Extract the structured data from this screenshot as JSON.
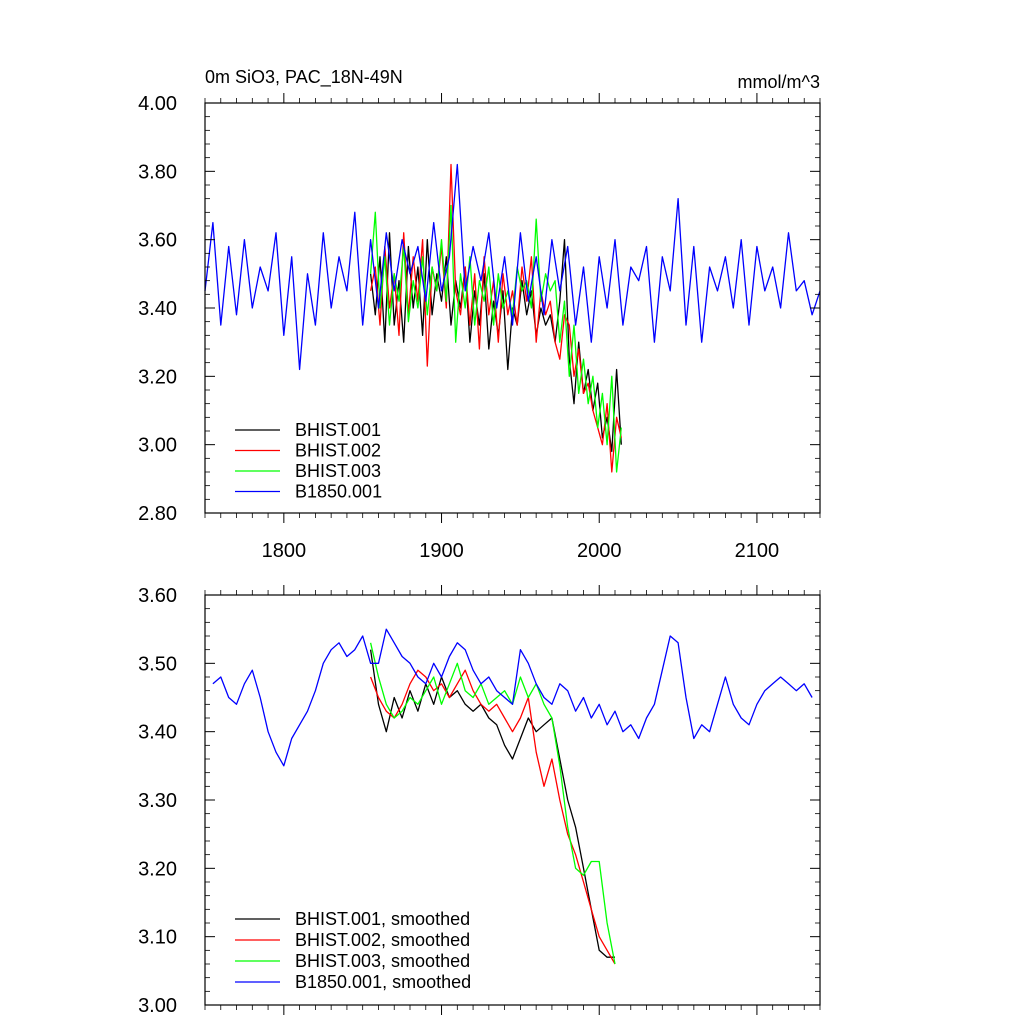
{
  "chart_data": [
    {
      "type": "line",
      "title": "0m SiO3, PAC_18N-49N",
      "units": "mmol/m^3",
      "xlim": [
        1750,
        2140
      ],
      "ylim": [
        2.8,
        4.0
      ],
      "xticks": [
        1800,
        1900,
        2000,
        2100
      ],
      "xtick_labels": [
        "1800",
        "1900",
        "2000",
        "2100"
      ],
      "yticks": [
        2.8,
        3.0,
        3.2,
        3.4,
        3.6,
        3.8,
        4.0
      ],
      "ytick_labels": [
        "2.80",
        "3.00",
        "3.20",
        "3.40",
        "3.60",
        "3.80",
        "4.00"
      ],
      "grid": false,
      "legend_position": "bottom-left",
      "series": [
        {
          "name": "BHIST.001",
          "color": "#000000",
          "x": [
            1855,
            1858,
            1861,
            1864,
            1867,
            1870,
            1873,
            1876,
            1879,
            1882,
            1885,
            1888,
            1891,
            1894,
            1897,
            1900,
            1903,
            1906,
            1909,
            1912,
            1915,
            1918,
            1921,
            1924,
            1927,
            1930,
            1933,
            1936,
            1939,
            1942,
            1945,
            1948,
            1951,
            1954,
            1957,
            1960,
            1963,
            1966,
            1969,
            1972,
            1975,
            1978,
            1981,
            1984,
            1987,
            1990,
            1993,
            1996,
            1999,
            2002,
            2005,
            2008,
            2011,
            2014
          ],
          "values": [
            3.5,
            3.38,
            3.55,
            3.3,
            3.62,
            3.35,
            3.48,
            3.3,
            3.58,
            3.4,
            3.52,
            3.32,
            3.6,
            3.38,
            3.5,
            3.42,
            3.55,
            3.35,
            3.48,
            3.4,
            3.52,
            3.3,
            3.45,
            3.35,
            3.5,
            3.28,
            3.42,
            3.32,
            3.45,
            3.22,
            3.4,
            3.35,
            3.48,
            3.38,
            3.45,
            3.32,
            3.4,
            3.35,
            3.38,
            3.3,
            3.42,
            3.6,
            3.25,
            3.12,
            3.3,
            3.15,
            3.22,
            3.1,
            3.18,
            3.02,
            3.08,
            2.98,
            3.22,
            3.0
          ]
        },
        {
          "name": "BHIST.002",
          "color": "#ff0000",
          "x": [
            1855,
            1858,
            1861,
            1864,
            1867,
            1870,
            1873,
            1876,
            1879,
            1882,
            1885,
            1888,
            1891,
            1894,
            1897,
            1900,
            1903,
            1906,
            1909,
            1912,
            1915,
            1918,
            1921,
            1924,
            1927,
            1930,
            1933,
            1936,
            1939,
            1942,
            1945,
            1948,
            1951,
            1954,
            1957,
            1960,
            1963,
            1966,
            1969,
            1972,
            1975,
            1978,
            1981,
            1984,
            1987,
            1990,
            1993,
            1996,
            1999,
            2002,
            2005,
            2008,
            2011,
            2014
          ],
          "values": [
            3.45,
            3.52,
            3.35,
            3.58,
            3.4,
            3.5,
            3.32,
            3.62,
            3.38,
            3.55,
            3.42,
            3.6,
            3.23,
            3.52,
            3.45,
            3.58,
            3.4,
            3.82,
            3.45,
            3.38,
            3.52,
            3.35,
            3.5,
            3.28,
            3.55,
            3.38,
            3.48,
            3.3,
            3.5,
            3.38,
            3.45,
            3.35,
            3.52,
            3.42,
            3.55,
            3.3,
            3.45,
            3.38,
            3.42,
            3.3,
            3.25,
            3.38,
            3.35,
            3.2,
            3.28,
            3.15,
            3.18,
            3.1,
            3.05,
            3.0,
            3.12,
            2.92,
            3.08,
            3.02
          ]
        },
        {
          "name": "BHIST.003",
          "color": "#00ff00",
          "x": [
            1855,
            1858,
            1861,
            1864,
            1867,
            1870,
            1873,
            1876,
            1879,
            1882,
            1885,
            1888,
            1891,
            1894,
            1897,
            1900,
            1903,
            1906,
            1909,
            1912,
            1915,
            1918,
            1921,
            1924,
            1927,
            1930,
            1933,
            1936,
            1939,
            1942,
            1945,
            1948,
            1951,
            1954,
            1957,
            1960,
            1963,
            1966,
            1969,
            1972,
            1975,
            1978,
            1981,
            1984,
            1987,
            1990,
            1993,
            1996,
            1999,
            2002,
            2005,
            2008,
            2011,
            2014
          ],
          "values": [
            3.5,
            3.68,
            3.4,
            3.55,
            3.35,
            3.5,
            3.42,
            3.58,
            3.36,
            3.48,
            3.4,
            3.55,
            3.38,
            3.52,
            3.45,
            3.6,
            3.42,
            3.7,
            3.3,
            3.5,
            3.4,
            3.55,
            3.35,
            3.48,
            3.42,
            3.52,
            3.35,
            3.5,
            3.4,
            3.45,
            3.38,
            3.52,
            3.45,
            3.48,
            3.4,
            3.66,
            3.42,
            3.5,
            3.45,
            3.48,
            3.3,
            3.42,
            3.2,
            3.35,
            3.15,
            3.25,
            3.12,
            3.2,
            3.05,
            3.15,
            3.0,
            3.2,
            2.92,
            3.05
          ]
        },
        {
          "name": "B1850.001",
          "color": "#0000ff",
          "x": [
            1750,
            1755,
            1760,
            1765,
            1770,
            1775,
            1780,
            1785,
            1790,
            1795,
            1800,
            1805,
            1810,
            1815,
            1820,
            1825,
            1830,
            1835,
            1840,
            1845,
            1850,
            1855,
            1860,
            1865,
            1870,
            1875,
            1880,
            1885,
            1890,
            1895,
            1900,
            1905,
            1910,
            1915,
            1920,
            1925,
            1930,
            1935,
            1940,
            1945,
            1950,
            1955,
            1960,
            1965,
            1970,
            1975,
            1980,
            1985,
            1990,
            1995,
            2000,
            2005,
            2010,
            2015,
            2020,
            2025,
            2030,
            2035,
            2040,
            2045,
            2050,
            2055,
            2060,
            2065,
            2070,
            2075,
            2080,
            2085,
            2090,
            2095,
            2100,
            2105,
            2110,
            2115,
            2120,
            2125,
            2130,
            2135,
            2140
          ],
          "values": [
            3.45,
            3.65,
            3.35,
            3.58,
            3.38,
            3.6,
            3.4,
            3.52,
            3.45,
            3.62,
            3.32,
            3.55,
            3.22,
            3.5,
            3.35,
            3.62,
            3.4,
            3.55,
            3.45,
            3.68,
            3.35,
            3.6,
            3.4,
            3.62,
            3.45,
            3.6,
            3.5,
            3.58,
            3.42,
            3.65,
            3.45,
            3.55,
            3.82,
            3.45,
            3.58,
            3.48,
            3.62,
            3.4,
            3.55,
            3.35,
            3.62,
            3.42,
            3.55,
            3.38,
            3.6,
            3.45,
            3.58,
            3.35,
            3.52,
            3.3,
            3.55,
            3.4,
            3.6,
            3.35,
            3.52,
            3.48,
            3.58,
            3.3,
            3.55,
            3.45,
            3.72,
            3.35,
            3.58,
            3.3,
            3.52,
            3.45,
            3.55,
            3.4,
            3.6,
            3.35,
            3.58,
            3.45,
            3.52,
            3.4,
            3.62,
            3.45,
            3.48,
            3.38,
            3.45
          ]
        }
      ]
    },
    {
      "type": "line",
      "title": "",
      "xlim": [
        1750,
        2140
      ],
      "ylim": [
        3.0,
        3.6
      ],
      "xticks": [
        1800,
        1900,
        2000,
        2100
      ],
      "yticks": [
        3.0,
        3.1,
        3.2,
        3.3,
        3.4,
        3.5,
        3.6
      ],
      "ytick_labels": [
        "3.00",
        "3.10",
        "3.20",
        "3.30",
        "3.40",
        "3.50",
        "3.60"
      ],
      "grid": false,
      "legend_position": "bottom-left",
      "series": [
        {
          "name": "BHIST.001, smoothed",
          "color": "#000000",
          "x": [
            1855,
            1860,
            1865,
            1870,
            1875,
            1880,
            1885,
            1890,
            1895,
            1900,
            1905,
            1910,
            1915,
            1920,
            1925,
            1930,
            1935,
            1940,
            1945,
            1950,
            1955,
            1960,
            1965,
            1970,
            1975,
            1980,
            1985,
            1990,
            1995,
            2000,
            2005,
            2010
          ],
          "values": [
            3.52,
            3.44,
            3.4,
            3.45,
            3.42,
            3.46,
            3.43,
            3.47,
            3.44,
            3.48,
            3.45,
            3.46,
            3.44,
            3.43,
            3.44,
            3.42,
            3.41,
            3.38,
            3.36,
            3.39,
            3.42,
            3.4,
            3.41,
            3.42,
            3.36,
            3.3,
            3.26,
            3.2,
            3.14,
            3.08,
            3.07,
            3.07
          ]
        },
        {
          "name": "BHIST.002, smoothed",
          "color": "#ff0000",
          "x": [
            1855,
            1860,
            1865,
            1870,
            1875,
            1880,
            1885,
            1890,
            1895,
            1900,
            1905,
            1910,
            1915,
            1920,
            1925,
            1930,
            1935,
            1940,
            1945,
            1950,
            1955,
            1960,
            1965,
            1970,
            1975,
            1980,
            1985,
            1990,
            1995,
            2000,
            2005,
            2010
          ],
          "values": [
            3.48,
            3.45,
            3.43,
            3.42,
            3.44,
            3.47,
            3.49,
            3.48,
            3.46,
            3.47,
            3.45,
            3.47,
            3.49,
            3.46,
            3.44,
            3.43,
            3.44,
            3.42,
            3.4,
            3.42,
            3.45,
            3.37,
            3.32,
            3.36,
            3.3,
            3.25,
            3.22,
            3.18,
            3.14,
            3.1,
            3.08,
            3.06
          ]
        },
        {
          "name": "BHIST.003, smoothed",
          "color": "#00ff00",
          "x": [
            1855,
            1860,
            1865,
            1870,
            1875,
            1880,
            1885,
            1890,
            1895,
            1900,
            1905,
            1910,
            1915,
            1920,
            1925,
            1930,
            1935,
            1940,
            1945,
            1950,
            1955,
            1960,
            1965,
            1970,
            1975,
            1980,
            1985,
            1990,
            1995,
            2000,
            2005,
            2010
          ],
          "values": [
            3.53,
            3.48,
            3.44,
            3.42,
            3.43,
            3.45,
            3.44,
            3.46,
            3.48,
            3.44,
            3.47,
            3.5,
            3.46,
            3.45,
            3.47,
            3.44,
            3.45,
            3.46,
            3.44,
            3.48,
            3.45,
            3.47,
            3.44,
            3.42,
            3.35,
            3.26,
            3.2,
            3.19,
            3.21,
            3.21,
            3.12,
            3.06
          ]
        },
        {
          "name": "B1850.001, smoothed",
          "color": "#0000ff",
          "x": [
            1755,
            1760,
            1765,
            1770,
            1775,
            1780,
            1785,
            1790,
            1795,
            1800,
            1805,
            1810,
            1815,
            1820,
            1825,
            1830,
            1835,
            1840,
            1845,
            1850,
            1855,
            1860,
            1865,
            1870,
            1875,
            1880,
            1885,
            1890,
            1895,
            1900,
            1905,
            1910,
            1915,
            1920,
            1925,
            1930,
            1935,
            1940,
            1945,
            1950,
            1955,
            1960,
            1965,
            1970,
            1975,
            1980,
            1985,
            1990,
            1995,
            2000,
            2005,
            2010,
            2015,
            2020,
            2025,
            2030,
            2035,
            2040,
            2045,
            2050,
            2055,
            2060,
            2065,
            2070,
            2075,
            2080,
            2085,
            2090,
            2095,
            2100,
            2105,
            2110,
            2115,
            2120,
            2125,
            2130,
            2135
          ],
          "values": [
            3.47,
            3.48,
            3.45,
            3.44,
            3.47,
            3.49,
            3.45,
            3.4,
            3.37,
            3.35,
            3.39,
            3.41,
            3.43,
            3.46,
            3.5,
            3.52,
            3.53,
            3.51,
            3.52,
            3.54,
            3.5,
            3.5,
            3.55,
            3.53,
            3.51,
            3.5,
            3.48,
            3.47,
            3.5,
            3.48,
            3.51,
            3.53,
            3.52,
            3.49,
            3.47,
            3.48,
            3.46,
            3.45,
            3.44,
            3.52,
            3.5,
            3.47,
            3.45,
            3.44,
            3.47,
            3.46,
            3.43,
            3.45,
            3.42,
            3.44,
            3.41,
            3.43,
            3.4,
            3.41,
            3.39,
            3.42,
            3.44,
            3.49,
            3.54,
            3.53,
            3.45,
            3.39,
            3.41,
            3.4,
            3.44,
            3.48,
            3.44,
            3.42,
            3.41,
            3.44,
            3.46,
            3.47,
            3.48,
            3.47,
            3.46,
            3.47,
            3.45
          ]
        }
      ]
    }
  ]
}
